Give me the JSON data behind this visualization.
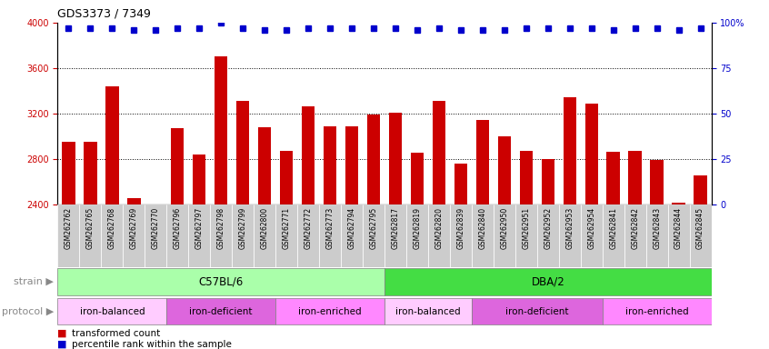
{
  "title": "GDS3373 / 7349",
  "samples": [
    "GSM262762",
    "GSM262765",
    "GSM262768",
    "GSM262769",
    "GSM262770",
    "GSM262796",
    "GSM262797",
    "GSM262798",
    "GSM262799",
    "GSM262800",
    "GSM262771",
    "GSM262772",
    "GSM262773",
    "GSM262794",
    "GSM262795",
    "GSM262817",
    "GSM262819",
    "GSM262820",
    "GSM262839",
    "GSM262840",
    "GSM262950",
    "GSM262951",
    "GSM262952",
    "GSM262953",
    "GSM262954",
    "GSM262841",
    "GSM262842",
    "GSM262843",
    "GSM262844",
    "GSM262845"
  ],
  "bar_values": [
    2950,
    2950,
    3440,
    2450,
    2400,
    3070,
    2840,
    3700,
    3310,
    3080,
    2870,
    3260,
    3090,
    3090,
    3190,
    3210,
    2850,
    3310,
    2760,
    3140,
    3000,
    2870,
    2800,
    3340,
    3290,
    2860,
    2870,
    2790,
    2410,
    2650
  ],
  "percentile_values": [
    97,
    97,
    97,
    96,
    96,
    97,
    97,
    100,
    97,
    96,
    96,
    97,
    97,
    97,
    97,
    97,
    96,
    97,
    96,
    96,
    96,
    97,
    97,
    97,
    97,
    96,
    97,
    97,
    96,
    97
  ],
  "bar_color": "#cc0000",
  "percentile_color": "#0000cc",
  "ylim_left": [
    2400,
    4000
  ],
  "ylim_right": [
    0,
    100
  ],
  "yticks_left": [
    2400,
    2800,
    3200,
    3600,
    4000
  ],
  "yticks_right": [
    0,
    25,
    50,
    75,
    100
  ],
  "yticklabels_right": [
    "0",
    "25",
    "50",
    "75",
    "100%"
  ],
  "grid_values": [
    2800,
    3200,
    3600
  ],
  "strain_groups": [
    {
      "label": "C57BL/6",
      "start": 0,
      "end": 15,
      "color": "#aaffaa"
    },
    {
      "label": "DBA/2",
      "start": 15,
      "end": 30,
      "color": "#44dd44"
    }
  ],
  "protocol_groups": [
    {
      "label": "iron-balanced",
      "start": 0,
      "end": 5,
      "color": "#ffccff"
    },
    {
      "label": "iron-deficient",
      "start": 5,
      "end": 10,
      "color": "#dd66dd"
    },
    {
      "label": "iron-enriched",
      "start": 10,
      "end": 15,
      "color": "#ff88ff"
    },
    {
      "label": "iron-balanced",
      "start": 15,
      "end": 19,
      "color": "#ffccff"
    },
    {
      "label": "iron-deficient",
      "start": 19,
      "end": 25,
      "color": "#dd66dd"
    },
    {
      "label": "iron-enriched",
      "start": 25,
      "end": 30,
      "color": "#ff88ff"
    }
  ],
  "tick_box_color": "#cccccc",
  "background_color": "#ffffff"
}
